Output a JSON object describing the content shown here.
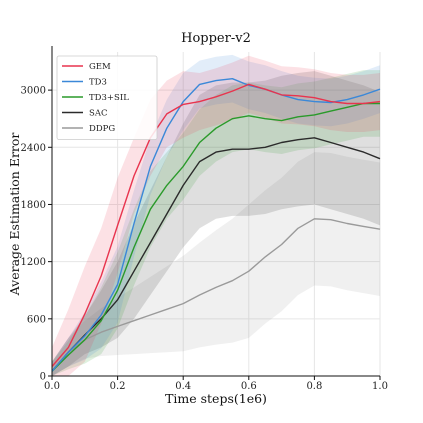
{
  "chart_data": {
    "type": "line",
    "title": "Hopper-v2",
    "xlabel": "Time steps(1e6)",
    "ylabel": "Average Estimation Error",
    "xlim": [
      0.0,
      1.0
    ],
    "ylim": [
      0,
      3400
    ],
    "xticks": [
      "0.0",
      "0.2",
      "0.4",
      "0.6",
      "0.8",
      "1.0"
    ],
    "yticks": [
      "0",
      "600",
      "1200",
      "1800",
      "2400",
      "3000"
    ],
    "grid": true,
    "legend_position": "top-left",
    "x": [
      0.0,
      0.05,
      0.1,
      0.15,
      0.2,
      0.25,
      0.3,
      0.35,
      0.4,
      0.45,
      0.5,
      0.55,
      0.6,
      0.65,
      0.7,
      0.75,
      0.8,
      0.85,
      0.9,
      0.95,
      1.0
    ],
    "series": [
      {
        "name": "GEM",
        "color": "#e8344e",
        "values": [
          100,
          300,
          650,
          1050,
          1580,
          2100,
          2500,
          2750,
          2850,
          2880,
          2930,
          2990,
          3060,
          3010,
          2950,
          2940,
          2920,
          2880,
          2860,
          2860,
          2880
        ],
        "band": [
          200,
          400,
          500,
          500,
          500,
          400,
          400,
          350,
          350,
          300,
          300,
          300,
          300,
          300,
          300,
          300,
          300,
          300,
          300,
          300,
          300
        ]
      },
      {
        "name": "TD3",
        "color": "#3b88d8",
        "values": [
          50,
          250,
          420,
          640,
          960,
          1600,
          2200,
          2600,
          2880,
          3060,
          3100,
          3120,
          3050,
          3010,
          2950,
          2900,
          2880,
          2870,
          2900,
          2950,
          3010
        ],
        "band": [
          100,
          150,
          250,
          350,
          400,
          350,
          300,
          300,
          300,
          250,
          250,
          250,
          250,
          250,
          250,
          250,
          250,
          250,
          250,
          250,
          250
        ]
      },
      {
        "name": "TD3+SIL",
        "color": "#2a9a2a",
        "values": [
          50,
          220,
          380,
          580,
          900,
          1350,
          1750,
          2000,
          2200,
          2450,
          2600,
          2700,
          2730,
          2700,
          2680,
          2720,
          2740,
          2780,
          2820,
          2860,
          2860
        ],
        "band": [
          100,
          150,
          250,
          350,
          400,
          400,
          400,
          350,
          350,
          350,
          350,
          350,
          350,
          350,
          350,
          350,
          350,
          350,
          350,
          350,
          350
        ]
      },
      {
        "name": "SAC",
        "color": "#2b2b2b",
        "values": [
          50,
          250,
          430,
          600,
          800,
          1100,
          1400,
          1700,
          2000,
          2250,
          2350,
          2380,
          2380,
          2400,
          2450,
          2480,
          2500,
          2450,
          2400,
          2350,
          2280
        ],
        "band": [
          100,
          150,
          200,
          300,
          400,
          500,
          550,
          600,
          650,
          700,
          700,
          700,
          700,
          700,
          700,
          700,
          700,
          700,
          700,
          700,
          700
        ]
      },
      {
        "name": "DDPG",
        "color": "#9a9a9a",
        "values": [
          50,
          250,
          380,
          460,
          520,
          580,
          640,
          700,
          760,
          850,
          930,
          1000,
          1100,
          1250,
          1380,
          1550,
          1650,
          1640,
          1600,
          1570,
          1540
        ],
        "band": [
          100,
          150,
          200,
          250,
          300,
          350,
          400,
          450,
          500,
          550,
          600,
          650,
          700,
          700,
          700,
          700,
          700,
          700,
          700,
          700,
          700
        ]
      }
    ]
  }
}
